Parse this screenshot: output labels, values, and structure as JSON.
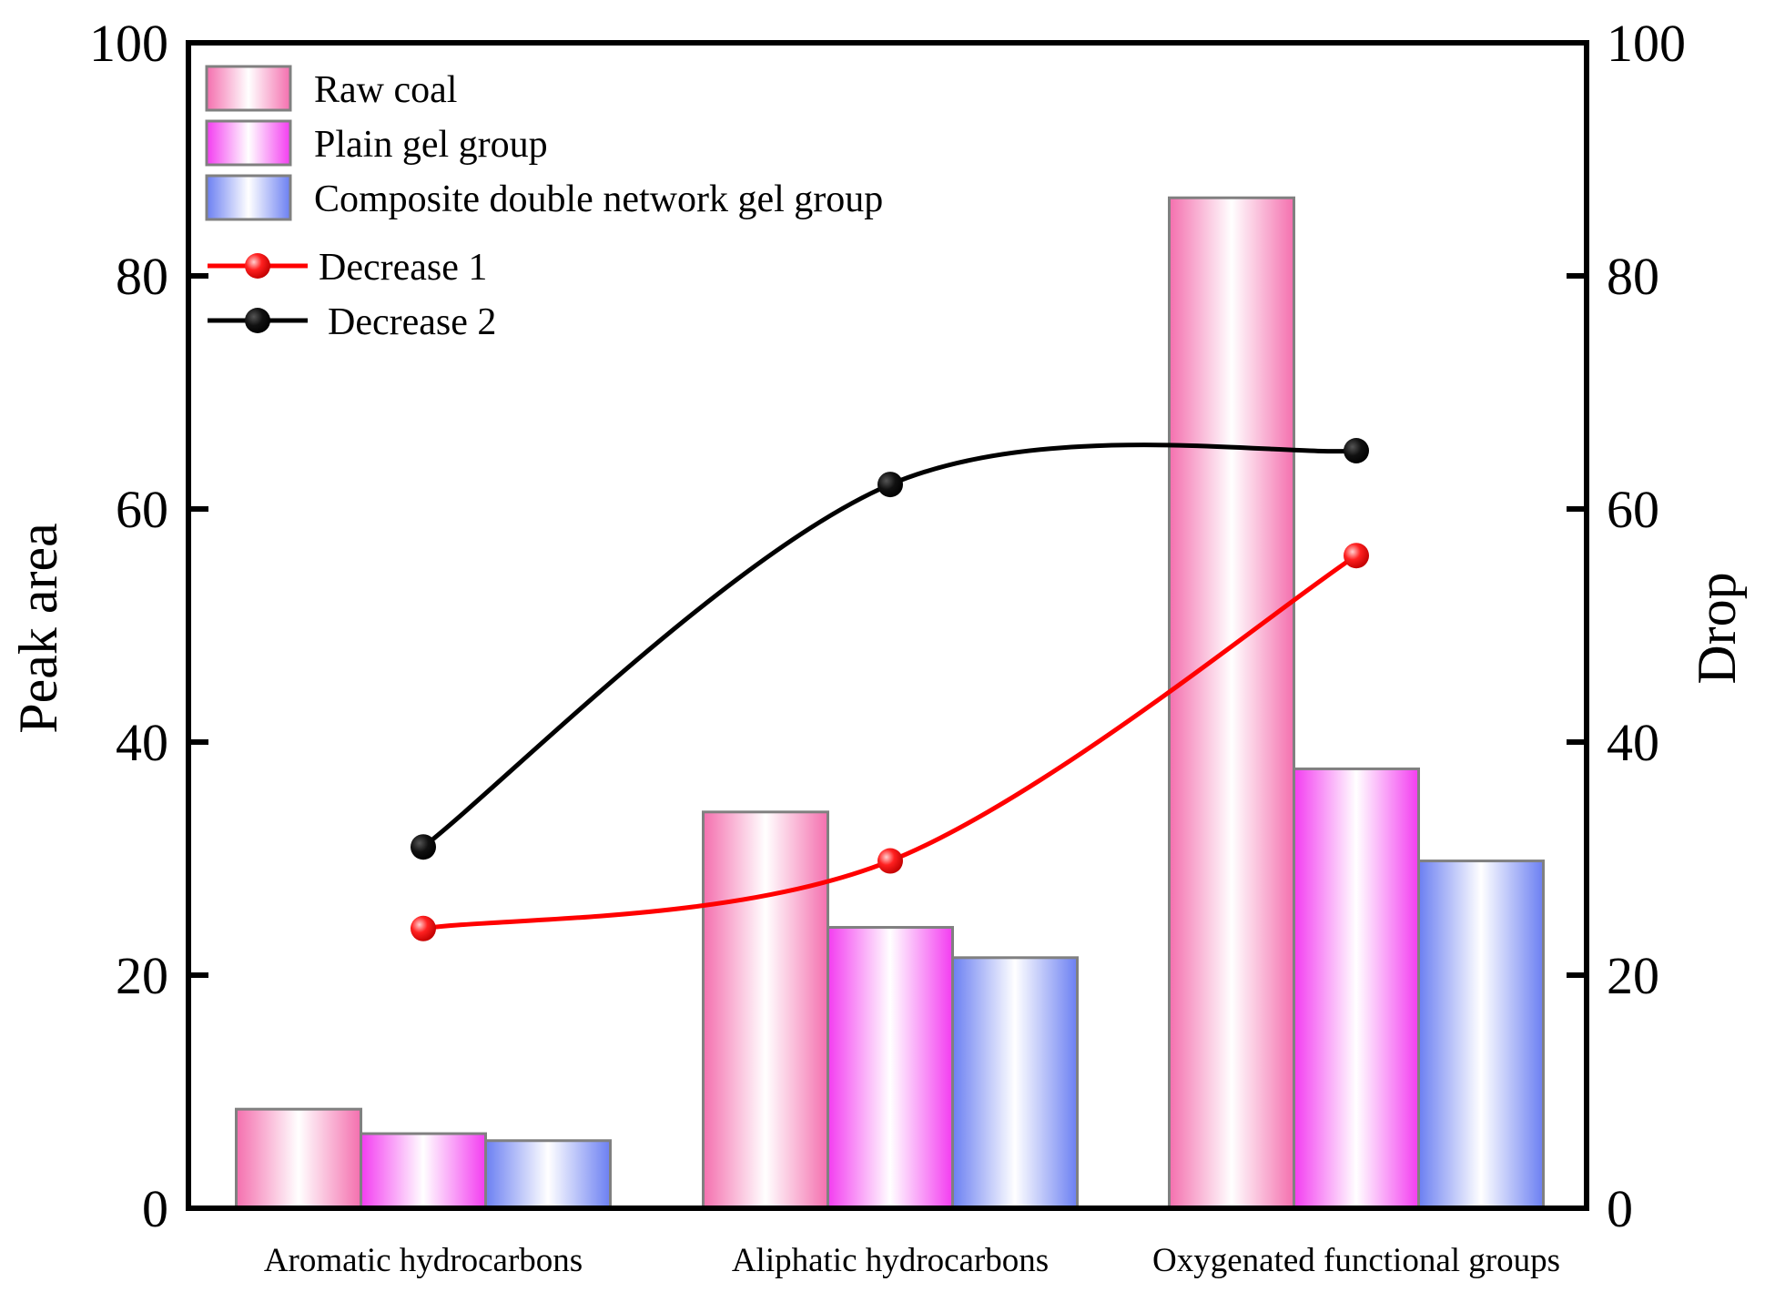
{
  "chart_data": {
    "type": "bar",
    "categories": [
      "Aromatic hydrocarbons",
      "Aliphatic hydrocarbons",
      "Oxygenated functional groups"
    ],
    "series": [
      {
        "name": "Raw coal",
        "axis": "left",
        "kind": "bar",
        "values": [
          8.5,
          34.0,
          86.7
        ],
        "color": "#f46fae"
      },
      {
        "name": "Plain gel group",
        "axis": "left",
        "kind": "bar",
        "values": [
          6.4,
          24.1,
          37.7
        ],
        "color": "#f33cf0"
      },
      {
        "name": "Composite double network gel group",
        "axis": "left",
        "kind": "bar",
        "values": [
          5.8,
          21.5,
          29.8
        ],
        "color": "#6b7ff2"
      },
      {
        "name": "Decrease 1",
        "axis": "right",
        "kind": "line",
        "values": [
          24.0,
          29.8,
          56.0
        ],
        "color": "#ff0000"
      },
      {
        "name": "Decrease 2",
        "axis": "right",
        "kind": "line",
        "values": [
          31.0,
          62.1,
          65.0
        ],
        "color": "#000000"
      }
    ],
    "ylabel": "Peak area",
    "y2label": "Drop",
    "ylim": [
      0,
      100
    ],
    "y2lim": [
      0,
      100
    ],
    "yticks": [
      "0",
      "20",
      "40",
      "60",
      "80",
      "100"
    ],
    "y2ticks": [
      "0",
      "20",
      "40",
      "60",
      "80",
      "100"
    ],
    "grid": false,
    "legend_position": "top-left"
  }
}
